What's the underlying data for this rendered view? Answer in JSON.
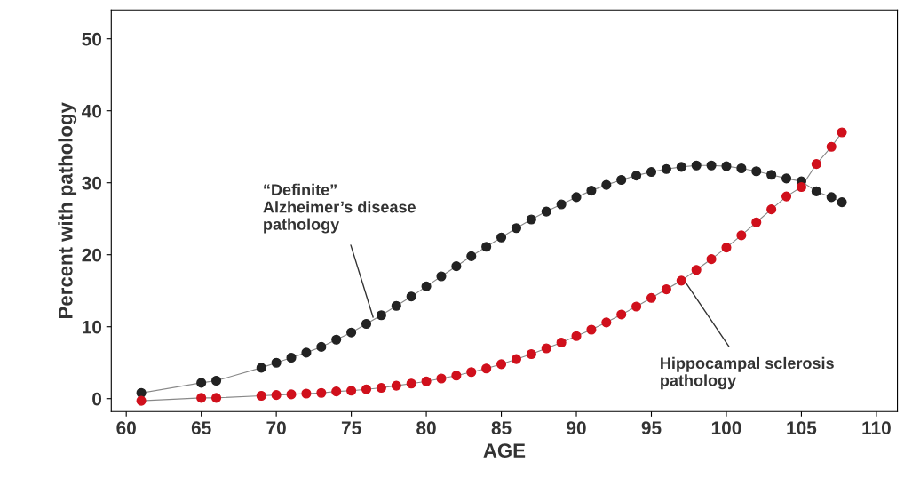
{
  "chart_data": {
    "type": "line",
    "xlabel": "AGE",
    "ylabel": "Percent with pathology",
    "marker": "circle",
    "line_style": "solid",
    "grid": false,
    "legend": false,
    "xlim": [
      59,
      111.4
    ],
    "ylim": [
      -1.8,
      54
    ],
    "xticks": [
      60,
      65,
      70,
      75,
      80,
      85,
      90,
      95,
      100,
      105,
      110
    ],
    "yticks": [
      0,
      10,
      20,
      30,
      40,
      50
    ],
    "x": [
      61,
      65,
      66,
      69,
      70,
      71,
      72,
      73,
      74,
      75,
      76,
      77,
      78,
      79,
      80,
      81,
      82,
      83,
      84,
      85,
      86,
      87,
      88,
      89,
      90,
      91,
      92,
      93,
      94,
      95,
      96,
      97,
      98,
      99,
      100,
      101,
      102,
      103,
      104,
      105,
      106,
      107,
      107.7
    ],
    "series": [
      {
        "color": "#222222",
        "values": [
          0.8,
          2.2,
          2.5,
          4.3,
          5.0,
          5.7,
          6.4,
          7.2,
          8.2,
          9.2,
          10.4,
          11.6,
          12.9,
          14.2,
          15.6,
          17.0,
          18.4,
          19.8,
          21.1,
          22.4,
          23.7,
          24.9,
          26.0,
          27.0,
          28.0,
          28.9,
          29.7,
          30.4,
          31.0,
          31.5,
          31.9,
          32.2,
          32.4,
          32.4,
          32.3,
          32.0,
          31.6,
          31.1,
          30.6,
          30.2,
          28.8,
          28.0,
          27.3
        ]
      },
      {
        "color": "#d0101c",
        "values": [
          -0.3,
          0.1,
          0.1,
          0.4,
          0.5,
          0.6,
          0.7,
          0.8,
          1.0,
          1.1,
          1.3,
          1.5,
          1.8,
          2.1,
          2.4,
          2.8,
          3.2,
          3.7,
          4.2,
          4.8,
          5.5,
          6.2,
          7.0,
          7.8,
          8.7,
          9.6,
          10.6,
          11.7,
          12.8,
          14.0,
          15.2,
          16.4,
          17.9,
          19.4,
          21.0,
          22.7,
          24.5,
          26.3,
          28.1,
          29.4,
          32.6,
          35.0,
          37.0
        ]
      }
    ],
    "annotations": [
      {
        "text": "“Definite”\nAlzheimer’s disease\npathology",
        "x": 76.5,
        "y": 11.0
      },
      {
        "text": "Hippocampal sclerosis\npathology",
        "x": 97.2,
        "y": 16.4
      }
    ]
  }
}
